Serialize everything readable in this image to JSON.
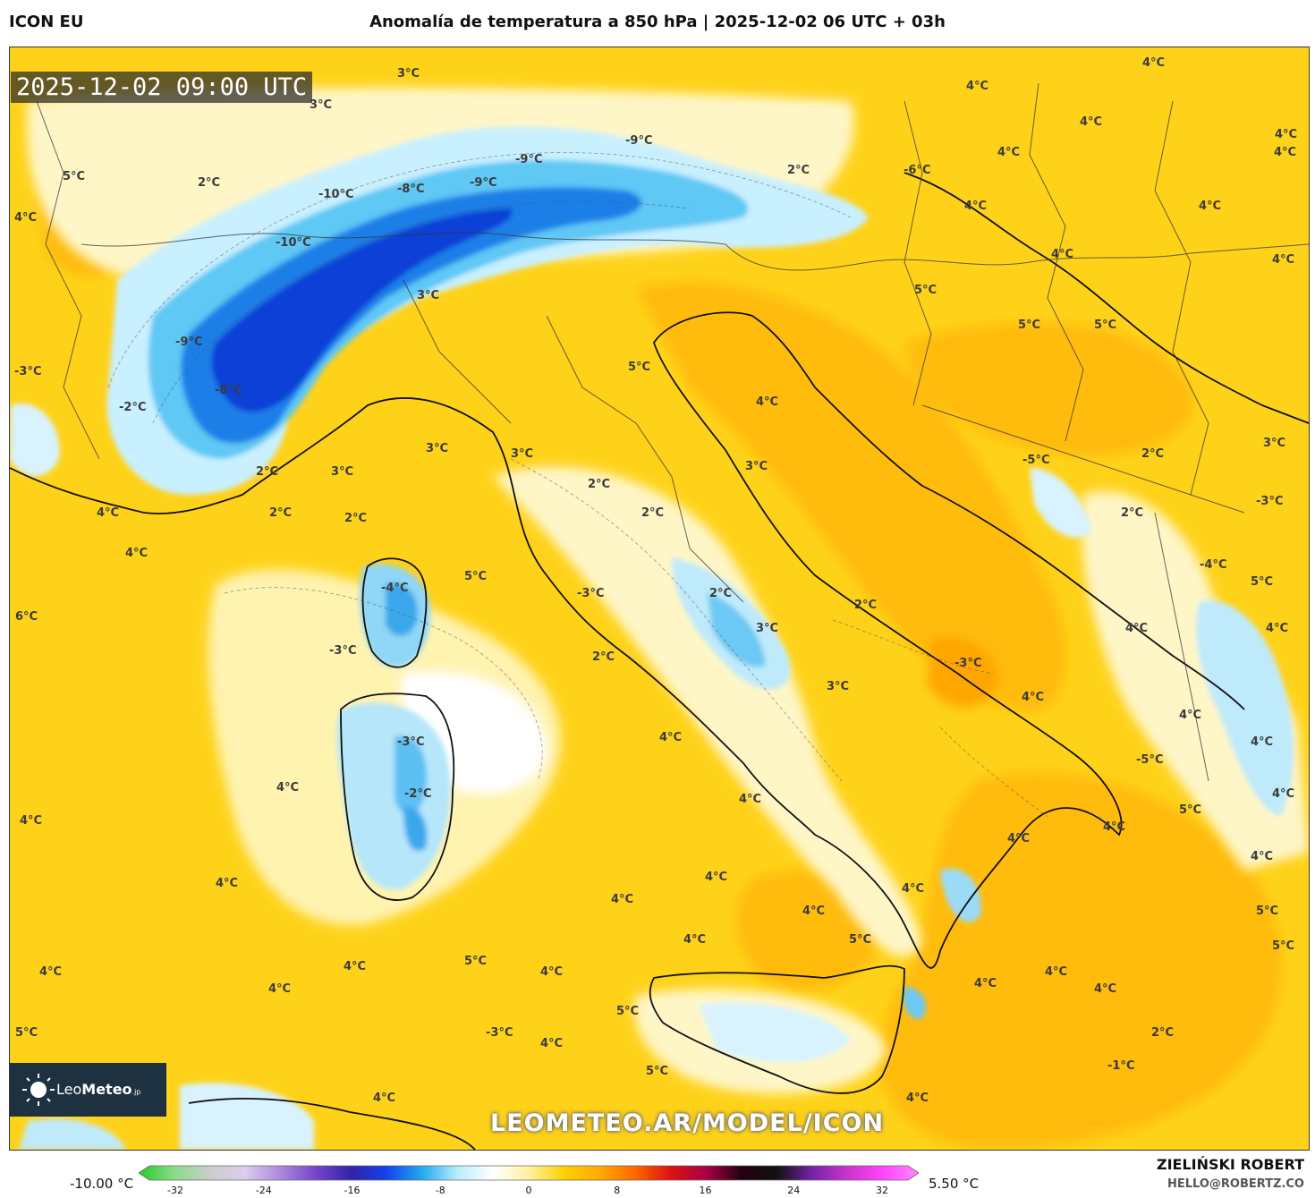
{
  "header": {
    "model": "ICON EU",
    "title": "Anomalía de temperatura a 850 hPa | 2025-12-02 06 UTC + 03h"
  },
  "map": {
    "timestamp": "2025-12-02 09:00 UTC",
    "watermark": "LEOMETEO.AR/MODEL/ICON",
    "brand_name": "Leo",
    "brand_name_bold": "Meteo",
    "brand_suffix": ".jp",
    "labels": [
      "3°C",
      "4°C",
      "3°C",
      "4°C",
      "4°C",
      "4°C",
      "5°C",
      "4°C",
      "-9°C",
      "-9°C",
      "2°C",
      "4°C",
      "-6°C",
      "4°C",
      "4°C",
      "2°C",
      "-10°C",
      "-8°C",
      "-9°C",
      "-10°C",
      "4°C",
      "4°C",
      "5°C",
      "4°C",
      "5°C",
      "5°C",
      "3°C",
      "-9°C",
      "-3°C",
      "5°C",
      "-8°C",
      "-2°C",
      "4°C",
      "3°C",
      "3°C",
      "2°C",
      "3°C",
      "3°C",
      "2°C",
      "3°C",
      "2°C",
      "2°C",
      "4°C",
      "2°C",
      "-5°C",
      "2°C",
      "-3°C",
      "4°C",
      "2°C",
      "-4°C",
      "-4°C",
      "5°C",
      "5°C",
      "-3°C",
      "2°C",
      "2°C",
      "6°C",
      "3°C",
      "4°C",
      "4°C",
      "-3°C",
      "2°C",
      "-3°C",
      "3°C",
      "4°C",
      "4°C",
      "4°C",
      "4°C",
      "-3°C",
      "-5°C",
      "4°C",
      "4°C",
      "-2°C",
      "4°C",
      "5°C",
      "4°C",
      "4°C",
      "4°C",
      "4°C",
      "4°C",
      "4°C",
      "4°C",
      "4°C",
      "4°C",
      "5°C",
      "4°C",
      "5°C",
      "5°C",
      "4°C",
      "4°C",
      "5°C",
      "4°C",
      "4°C",
      "4°C",
      "4°C",
      "4°C",
      "5°C",
      "5°C",
      "-3°C",
      "2°C",
      "4°C",
      "-1°C",
      "5°C",
      "4°C",
      "4°C"
    ]
  },
  "colorbar": {
    "min_label": "-10.00 °C",
    "max_label": "5.50 °C",
    "ticks": [
      "-32",
      "-24",
      "-16",
      "-8",
      "0",
      "8",
      "16",
      "24",
      "32"
    ],
    "stops": [
      "#22cc22",
      "#88dd88",
      "#cccccc",
      "#ddccee",
      "#aa88dd",
      "#7744cc",
      "#3322aa",
      "#1144ee",
      "#22aaee",
      "#bbeeff",
      "#ffffff",
      "#fff2a0",
      "#ffd000",
      "#ffaa00",
      "#ff6600",
      "#dd1111",
      "#aa0044",
      "#220011",
      "#111111",
      "#7722aa",
      "#cc33cc",
      "#ff44ff",
      "#ff88ff"
    ]
  },
  "credits": {
    "author": "ZIELIŃSKI ROBERT",
    "email": "HELLO@ROBERTZ.CO"
  }
}
